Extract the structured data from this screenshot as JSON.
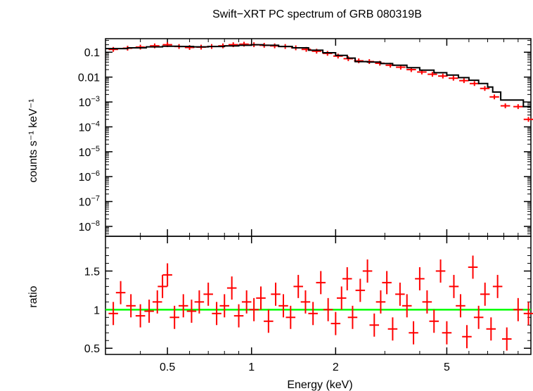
{
  "chart_data": {
    "type": "scatter",
    "title": "Swift−XRT PC spectrum of GRB 080319B",
    "xlabel": "Energy (keV)",
    "x_scale": "log",
    "xlim": [
      0.3,
      10
    ],
    "x_ticks": [
      {
        "value": 0.5,
        "label": "0.5"
      },
      {
        "value": 1,
        "label": "1"
      },
      {
        "value": 2,
        "label": "2"
      },
      {
        "value": 5,
        "label": "5"
      }
    ],
    "colors": {
      "data": "#ff0000",
      "model": "#000000",
      "unity": "#00ff00",
      "axes": "#000000"
    },
    "panels": [
      {
        "name": "spectrum",
        "ylabel": "counts s⁻¹ keV⁻¹",
        "y_scale": "log",
        "ylim": [
          4e-09,
          0.35
        ],
        "y_ticks": [
          {
            "value": 0.1,
            "base": "0.1",
            "exp": ""
          },
          {
            "value": 0.01,
            "base": "0.01",
            "exp": ""
          },
          {
            "value": 0.001,
            "base": "10",
            "exp": "−3"
          },
          {
            "value": 0.0001,
            "base": "10",
            "exp": "−4"
          },
          {
            "value": 1e-05,
            "base": "10",
            "exp": "−5"
          },
          {
            "value": 1e-06,
            "base": "10",
            "exp": "−6"
          },
          {
            "value": 1e-07,
            "base": "10",
            "exp": "−7"
          },
          {
            "value": 1e-08,
            "base": "10",
            "exp": "−8"
          }
        ],
        "series": [
          {
            "kind": "data",
            "x": [
              0.32,
              0.36,
              0.4,
              0.45,
              0.5,
              0.55,
              0.6,
              0.66,
              0.72,
              0.79,
              0.86,
              0.94,
              1.02,
              1.11,
              1.21,
              1.32,
              1.44,
              1.57,
              1.71,
              1.87,
              2.04,
              2.22,
              2.42,
              2.64,
              2.88,
              3.14,
              3.42,
              3.73,
              4.07,
              4.44,
              4.84,
              5.28,
              5.76,
              6.28,
              6.84,
              7.4,
              8.1,
              9.0,
              9.8
            ],
            "y": [
              0.13,
              0.145,
              0.16,
              0.18,
              0.2,
              0.17,
              0.155,
              0.16,
              0.17,
              0.18,
              0.2,
              0.21,
              0.2,
              0.19,
              0.18,
              0.17,
              0.15,
              0.13,
              0.11,
              0.09,
              0.07,
              0.055,
              0.045,
              0.042,
              0.036,
              0.03,
              0.025,
              0.02,
              0.016,
              0.013,
              0.011,
              0.009,
              0.0072,
              0.0055,
              0.0035,
              0.0016,
              0.0007,
              0.00065,
              0.0002
            ]
          },
          {
            "kind": "model",
            "x": [
              0.3,
              0.36,
              0.42,
              0.48,
              0.55,
              0.62,
              0.7,
              0.8,
              0.9,
              1.0,
              1.1,
              1.25,
              1.4,
              1.6,
              1.8,
              2.0,
              2.2,
              2.35,
              2.6,
              2.9,
              3.2,
              3.6,
              4.0,
              4.5,
              5.0,
              5.5,
              6.0,
              6.5,
              7.0,
              7.3,
              7.8,
              8.6,
              9.4,
              10.0
            ],
            "y": [
              0.14,
              0.15,
              0.165,
              0.175,
              0.17,
              0.165,
              0.17,
              0.18,
              0.19,
              0.2,
              0.19,
              0.17,
              0.15,
              0.12,
              0.095,
              0.075,
              0.058,
              0.042,
              0.04,
              0.035,
              0.03,
              0.024,
              0.019,
              0.015,
              0.012,
              0.0095,
              0.0075,
              0.0055,
              0.004,
              0.0025,
              0.0012,
              0.0012,
              0.00065,
              0.0005
            ]
          }
        ]
      },
      {
        "name": "ratio",
        "ylabel": "ratio",
        "y_scale": "linear",
        "ylim": [
          0.42,
          1.95
        ],
        "y_ticks": [
          {
            "value": 0.5,
            "label": "0.5"
          },
          {
            "value": 1,
            "label": "1"
          },
          {
            "value": 1.5,
            "label": "1.5"
          }
        ],
        "reference_line": 1,
        "series": [
          {
            "kind": "data",
            "x": [
              0.32,
              0.34,
              0.37,
              0.4,
              0.43,
              0.46,
              0.48,
              0.5,
              0.53,
              0.57,
              0.61,
              0.65,
              0.7,
              0.75,
              0.8,
              0.85,
              0.9,
              0.96,
              1.02,
              1.08,
              1.15,
              1.22,
              1.3,
              1.38,
              1.47,
              1.56,
              1.66,
              1.77,
              1.88,
              2.0,
              2.1,
              2.2,
              2.3,
              2.45,
              2.6,
              2.75,
              2.9,
              3.05,
              3.2,
              3.4,
              3.6,
              3.8,
              4.0,
              4.25,
              4.5,
              4.75,
              5.0,
              5.3,
              5.6,
              5.9,
              6.2,
              6.5,
              6.85,
              7.2,
              7.6,
              8.2,
              9.0,
              9.8
            ],
            "y": [
              0.95,
              1.22,
              1.05,
              0.92,
              0.98,
              1.1,
              1.3,
              1.45,
              0.9,
              1.05,
              0.98,
              1.1,
              1.2,
              0.95,
              1.05,
              1.28,
              0.92,
              1.1,
              1.0,
              1.15,
              0.85,
              1.2,
              1.05,
              0.9,
              1.3,
              1.1,
              0.95,
              1.35,
              1.0,
              0.82,
              1.15,
              1.4,
              0.9,
              1.25,
              1.5,
              0.8,
              1.1,
              1.35,
              0.75,
              1.2,
              1.05,
              0.7,
              1.4,
              1.1,
              0.85,
              1.5,
              0.7,
              1.3,
              1.05,
              0.65,
              1.55,
              0.9,
              1.2,
              0.75,
              1.3,
              0.62,
              1.0,
              0.95
            ]
          }
        ]
      }
    ]
  }
}
